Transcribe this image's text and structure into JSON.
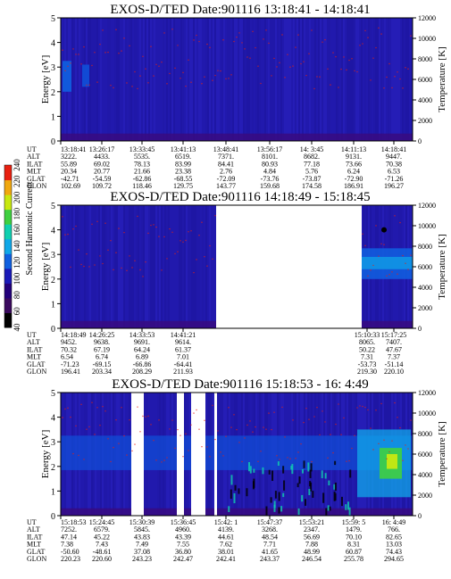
{
  "figure": {
    "ylabel_left": "Energy [eV]",
    "ylabel_right": "Temperature [K]",
    "colorbar": {
      "label": "Second Harmonic Current",
      "ticks": [
        40,
        60,
        80,
        100,
        120,
        140,
        160,
        180,
        200,
        220,
        240
      ],
      "colors": [
        "#000000",
        "#3a0a5e",
        "#22007a",
        "#1a1ab8",
        "#1060e0",
        "#10a8e8",
        "#10d0b0",
        "#40d040",
        "#c8e810",
        "#f0a810",
        "#e82010"
      ]
    },
    "row_labels": [
      "UT",
      "ALT",
      "ILAT",
      "MLT",
      "GLAT",
      "GLON"
    ]
  },
  "chart_data": [
    {
      "type": "heatmap",
      "title": "EXOS-D/TED   Date:901116  13:18:41 - 14:18:41",
      "ylim_left": [
        0,
        5
      ],
      "yticks_left": [
        0,
        1,
        2,
        3,
        4,
        5
      ],
      "ylim_right": [
        0,
        12000
      ],
      "yticks_right": [
        0,
        2000,
        4000,
        6000,
        8000,
        10000,
        12000
      ],
      "data_gaps": [],
      "columns": [
        {
          "UT": "13:18:41",
          "ALT": "3222.",
          "ILAT": "55.89",
          "MLT": "20.34",
          "GLAT": "-42.71",
          "GLON": "102.69"
        },
        {
          "UT": "13:26:17",
          "ALT": "4433.",
          "ILAT": "69.02",
          "MLT": "20.77",
          "GLAT": "-54.59",
          "GLON": "109.72"
        },
        {
          "UT": "13:33:45",
          "ALT": "5535.",
          "ILAT": "78.13",
          "MLT": "21.66",
          "GLAT": "-62.86",
          "GLON": "118.46"
        },
        {
          "UT": "13:41:13",
          "ALT": "6519.",
          "ILAT": "83.99",
          "MLT": "23.38",
          "GLAT": "-68.55",
          "GLON": "129.75"
        },
        {
          "UT": "13:48:41",
          "ALT": "7371.",
          "ILAT": "84.41",
          "MLT": "2.76",
          "GLAT": "-72.09",
          "GLON": "143.77"
        },
        {
          "UT": "13:56:17",
          "ALT": "8101.",
          "ILAT": "80.93",
          "MLT": "4.84",
          "GLAT": "-73.76",
          "GLON": "159.68"
        },
        {
          "UT": "14: 3:45",
          "ALT": "8682.",
          "ILAT": "77.18",
          "MLT": "5.76",
          "GLAT": "-73.87",
          "GLON": "174.58"
        },
        {
          "UT": "14:11:13",
          "ALT": "9131.",
          "ILAT": "73.66",
          "MLT": "6.24",
          "GLAT": "-72.90",
          "GLON": "186.91"
        },
        {
          "UT": "14:18:41",
          "ALT": "9447.",
          "ILAT": "70.38",
          "MLT": "6.53",
          "GLAT": "-71.26",
          "GLON": "196.27"
        }
      ]
    },
    {
      "type": "heatmap",
      "title": "EXOS-D/TED   Date:901116  14:18:49 - 15:18:45",
      "ylim_left": [
        0,
        5
      ],
      "yticks_left": [
        0,
        1,
        2,
        3,
        4,
        5
      ],
      "ylim_right": [
        0,
        12000
      ],
      "yticks_right": [
        0,
        2000,
        4000,
        6000,
        8000,
        10000,
        12000
      ],
      "data_gaps": [
        [
          "14:41:21",
          "15:10:33"
        ]
      ],
      "columns": [
        {
          "UT": "14:18:49",
          "ALT": "9452.",
          "ILAT": "70.32",
          "MLT": "6.54",
          "GLAT": "-71.23",
          "GLON": "196.41"
        },
        {
          "UT": "14:26:25",
          "ALT": "9638.",
          "ILAT": "67.19",
          "MLT": "6.74",
          "GLAT": "-69.15",
          "GLON": "203.34"
        },
        {
          "UT": "14:33:53",
          "ALT": "9691.",
          "ILAT": "64.24",
          "MLT": "6.89",
          "GLAT": "-66.86",
          "GLON": "208.29"
        },
        {
          "UT": "14:41:21",
          "ALT": "9614.",
          "ILAT": "61.37",
          "MLT": "7.01",
          "GLAT": "-64.41",
          "GLON": "211.93"
        },
        {
          "UT": "15:10:33",
          "ALT": "8065.",
          "ILAT": "50.22",
          "MLT": "7.31",
          "GLAT": "-53.73",
          "GLON": "219.30"
        },
        {
          "UT": "15:17:25",
          "ALT": "7407.",
          "ILAT": "47.67",
          "MLT": "7.37",
          "GLAT": "-51.14",
          "GLON": "220.10"
        }
      ]
    },
    {
      "type": "heatmap",
      "title": "EXOS-D/TED   Date:901116  15:18:53 - 16: 4:49",
      "ylim_left": [
        0,
        5
      ],
      "yticks_left": [
        0,
        1,
        2,
        3,
        4,
        5
      ],
      "ylim_right": [
        0,
        12000
      ],
      "yticks_right": [
        0,
        2000,
        4000,
        6000,
        8000,
        10000,
        12000
      ],
      "data_gaps": [],
      "columns": [
        {
          "UT": "15:18:53",
          "ALT": "7252.",
          "ILAT": "47.14",
          "MLT": "7.38",
          "GLAT": "-50.60",
          "GLON": "220.23"
        },
        {
          "UT": "15:24:45",
          "ALT": "6579.",
          "ILAT": "45.22",
          "MLT": "7.43",
          "GLAT": "-48.61",
          "GLON": "220.60"
        },
        {
          "UT": "15:30:39",
          "ALT": "5845.",
          "ILAT": "43.83",
          "MLT": "7.49",
          "GLAT": "37.08",
          "GLON": "243.23"
        },
        {
          "UT": "15:36:45",
          "ALT": "4960.",
          "ILAT": "43.39",
          "MLT": "7.55",
          "GLAT": "36.80",
          "GLON": "242.47"
        },
        {
          "UT": "15:42: 1",
          "ALT": "4139.",
          "ILAT": "44.61",
          "MLT": "7.62",
          "GLAT": "38.01",
          "GLON": "242.41"
        },
        {
          "UT": "15:47:37",
          "ALT": "3268.",
          "ILAT": "48.54",
          "MLT": "7.71",
          "GLAT": "41.65",
          "GLON": "243.37"
        },
        {
          "UT": "15:53:21",
          "ALT": "2347.",
          "ILAT": "56.69",
          "MLT": "7.88",
          "GLAT": "48.99",
          "GLON": "246.54"
        },
        {
          "UT": "15:59: 5",
          "ALT": "1479.",
          "ILAT": "70.10",
          "MLT": "8.31",
          "GLAT": "60.87",
          "GLON": "255.78"
        },
        {
          "UT": "16: 4:49",
          "ALT": "766.",
          "ILAT": "82.65",
          "MLT": "13.03",
          "GLAT": "74.43",
          "GLON": "294.65"
        }
      ]
    }
  ]
}
